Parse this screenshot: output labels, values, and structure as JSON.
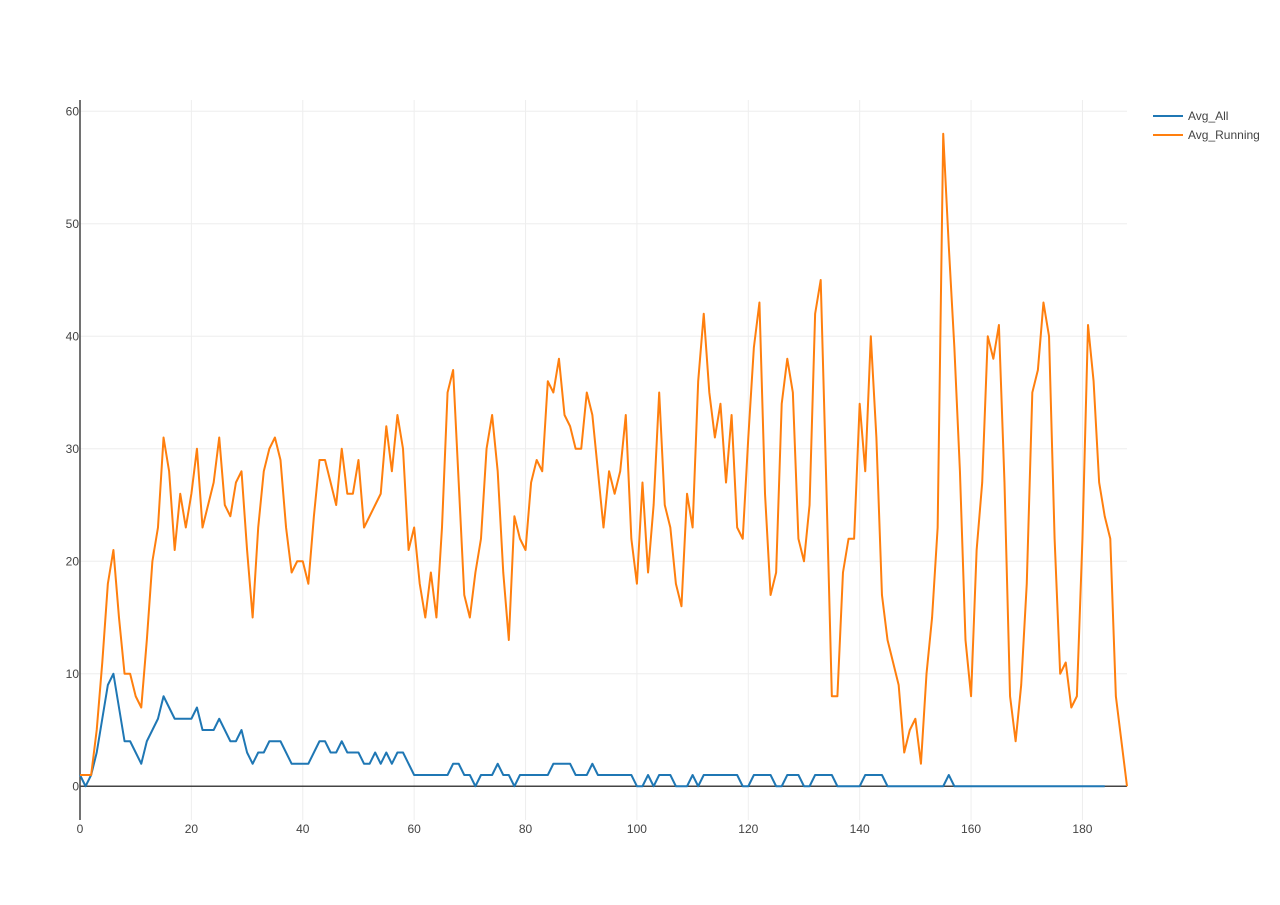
{
  "chart_data": {
    "type": "line",
    "title": "",
    "xlabel": "",
    "ylabel": "",
    "xlim": [
      0,
      188
    ],
    "ylim": [
      -3,
      61
    ],
    "x_ticks": [
      0,
      20,
      40,
      60,
      80,
      100,
      120,
      140,
      160,
      180
    ],
    "y_ticks": [
      0,
      10,
      20,
      30,
      40,
      50,
      60
    ],
    "grid": true,
    "legend_position": "top-right",
    "series": [
      {
        "name": "Avg_All",
        "color": "#1f77b4",
        "values": [
          1,
          0,
          1,
          3,
          6,
          9,
          10,
          7,
          4,
          4,
          3,
          2,
          4,
          5,
          6,
          8,
          7,
          6,
          6,
          6,
          6,
          7,
          5,
          5,
          5,
          6,
          5,
          4,
          4,
          5,
          3,
          2,
          3,
          3,
          4,
          4,
          4,
          3,
          2,
          2,
          2,
          2,
          3,
          4,
          4,
          3,
          3,
          4,
          3,
          3,
          3,
          2,
          2,
          3,
          2,
          3,
          2,
          3,
          3,
          2,
          1,
          1,
          1,
          1,
          1,
          1,
          1,
          2,
          2,
          1,
          1,
          0,
          1,
          1,
          1,
          2,
          1,
          1,
          0,
          1,
          1,
          1,
          1,
          1,
          1,
          2,
          2,
          2,
          2,
          1,
          1,
          1,
          2,
          1,
          1,
          1,
          1,
          1,
          1,
          1,
          0,
          0,
          1,
          0,
          1,
          1,
          1,
          0,
          0,
          0,
          1,
          0,
          1,
          1,
          1,
          1,
          1,
          1,
          1,
          0,
          0,
          1,
          1,
          1,
          1,
          0,
          0,
          1,
          1,
          1,
          0,
          0,
          1,
          1,
          1,
          1,
          0,
          0,
          0,
          0,
          0,
          1,
          1,
          1,
          1,
          0,
          0,
          0,
          0,
          0,
          0,
          0,
          0,
          0,
          0,
          0,
          1,
          0,
          0,
          0,
          0,
          0,
          0,
          0,
          0,
          0,
          0,
          0,
          0,
          0,
          0,
          0,
          0,
          0,
          0,
          0,
          0,
          0,
          0,
          0,
          0,
          0,
          0,
          0,
          0
        ]
      },
      {
        "name": "Avg_Running",
        "color": "#ff7f0e",
        "values": [
          1,
          1,
          1,
          5,
          11,
          18,
          21,
          15,
          10,
          10,
          8,
          7,
          13,
          20,
          23,
          31,
          28,
          21,
          26,
          23,
          26,
          30,
          23,
          25,
          27,
          31,
          25,
          24,
          27,
          28,
          21,
          15,
          23,
          28,
          30,
          31,
          29,
          23,
          19,
          20,
          20,
          18,
          24,
          29,
          29,
          27,
          25,
          30,
          26,
          26,
          29,
          23,
          24,
          25,
          26,
          32,
          28,
          33,
          30,
          21,
          23,
          18,
          15,
          19,
          15,
          23,
          35,
          37,
          27,
          17,
          15,
          19,
          22,
          30,
          33,
          28,
          19,
          13,
          24,
          22,
          21,
          27,
          29,
          28,
          36,
          35,
          38,
          33,
          32,
          30,
          30,
          35,
          33,
          28,
          23,
          28,
          26,
          28,
          33,
          22,
          18,
          27,
          19,
          25,
          35,
          25,
          23,
          18,
          16,
          26,
          23,
          36,
          42,
          35,
          31,
          34,
          27,
          33,
          23,
          22,
          31,
          39,
          43,
          26,
          17,
          19,
          34,
          38,
          35,
          22,
          20,
          25,
          42,
          45,
          27,
          8,
          8,
          19,
          22,
          22,
          34,
          28,
          40,
          31,
          17,
          13,
          11,
          9,
          3,
          5,
          6,
          2,
          10,
          15,
          23,
          58,
          48,
          39,
          28,
          13,
          8,
          21,
          27,
          40,
          38,
          41,
          27,
          8,
          4,
          9,
          18,
          35,
          37,
          43,
          40,
          22,
          10,
          11,
          7,
          8,
          22,
          41,
          36,
          27,
          24,
          22,
          8,
          4,
          0
        ]
      }
    ]
  }
}
